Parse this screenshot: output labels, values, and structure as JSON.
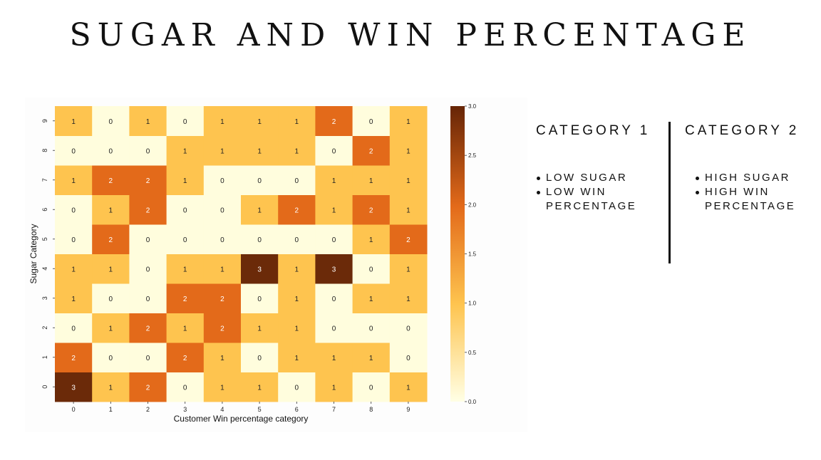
{
  "title": "SUGAR AND WIN PERCENTAGE",
  "chart_data": {
    "type": "heatmap",
    "xlabel": "Customer Win percentage category",
    "ylabel": "Sugar Category",
    "x_categories": [
      "0",
      "1",
      "2",
      "3",
      "4",
      "5",
      "6",
      "7",
      "8",
      "9"
    ],
    "y_categories": [
      "0",
      "1",
      "2",
      "3",
      "4",
      "5",
      "6",
      "7",
      "8",
      "9"
    ],
    "values": [
      [
        3,
        1,
        2,
        0,
        1,
        1,
        0,
        1,
        0,
        1
      ],
      [
        2,
        0,
        0,
        2,
        1,
        0,
        1,
        1,
        1,
        0
      ],
      [
        0,
        1,
        2,
        1,
        2,
        1,
        1,
        0,
        0,
        0
      ],
      [
        1,
        0,
        0,
        2,
        2,
        0,
        1,
        0,
        1,
        1
      ],
      [
        1,
        1,
        0,
        1,
        1,
        3,
        1,
        3,
        0,
        1
      ],
      [
        0,
        2,
        0,
        0,
        0,
        0,
        0,
        0,
        1,
        2
      ],
      [
        0,
        1,
        2,
        0,
        0,
        1,
        2,
        1,
        2,
        1
      ],
      [
        1,
        2,
        2,
        1,
        0,
        0,
        0,
        1,
        1,
        1
      ],
      [
        0,
        0,
        0,
        1,
        1,
        1,
        1,
        0,
        2,
        1
      ],
      [
        1,
        0,
        1,
        0,
        1,
        1,
        1,
        2,
        0,
        1
      ]
    ],
    "colorbar": {
      "range": [
        0.0,
        3.0
      ],
      "ticks": [
        "0.0",
        "0.5",
        "1.0",
        "1.5",
        "2.0",
        "2.5",
        "3.0"
      ],
      "colors": {
        "0": "#fffddd",
        "1": "#fec44f",
        "2": "#e36a1a",
        "3": "#6b2a09"
      }
    }
  },
  "categories": [
    {
      "heading": "CATEGORY 1",
      "items": [
        "LOW SUGAR",
        "LOW WIN PERCENTAGE"
      ]
    },
    {
      "heading": "CATEGORY 2",
      "items": [
        "HIGH SUGAR",
        "HIGH WIN PERCENTAGE"
      ]
    }
  ]
}
